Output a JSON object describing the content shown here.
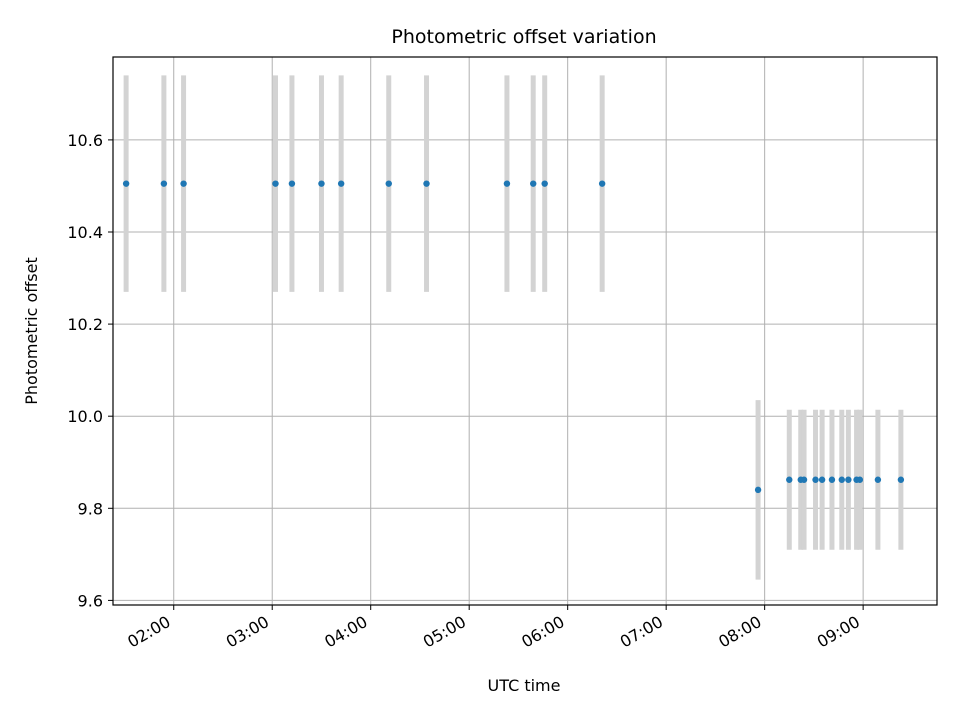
{
  "chart_data": {
    "type": "scatter",
    "title": "Photometric offset variation",
    "xlabel": "UTC time",
    "ylabel": "Photometric offset",
    "xlim": [
      "01:23",
      "09:45"
    ],
    "ylim": [
      9.59,
      10.78
    ],
    "grid": true,
    "x_ticks": [
      "02:00",
      "03:00",
      "04:00",
      "05:00",
      "06:00",
      "07:00",
      "08:00",
      "09:00"
    ],
    "y_ticks": [
      "9.6",
      "9.8",
      "10.0",
      "10.2",
      "10.4",
      "10.6"
    ],
    "errorbar_color": "#d3d3d3",
    "marker_color": "#1f77b4",
    "points": [
      {
        "x": "01:31",
        "y": 10.505,
        "err": 0.235
      },
      {
        "x": "01:54",
        "y": 10.505,
        "err": 0.235
      },
      {
        "x": "02:06",
        "y": 10.505,
        "err": 0.235
      },
      {
        "x": "03:02",
        "y": 10.505,
        "err": 0.235
      },
      {
        "x": "03:12",
        "y": 10.505,
        "err": 0.235
      },
      {
        "x": "03:30",
        "y": 10.505,
        "err": 0.235
      },
      {
        "x": "03:42",
        "y": 10.505,
        "err": 0.235
      },
      {
        "x": "04:11",
        "y": 10.505,
        "err": 0.235
      },
      {
        "x": "04:34",
        "y": 10.505,
        "err": 0.235
      },
      {
        "x": "05:23",
        "y": 10.505,
        "err": 0.235
      },
      {
        "x": "05:39",
        "y": 10.505,
        "err": 0.235
      },
      {
        "x": "05:46",
        "y": 10.505,
        "err": 0.235
      },
      {
        "x": "06:21",
        "y": 10.505,
        "err": 0.235
      },
      {
        "x": "07:56",
        "y": 9.84,
        "err": 0.195
      },
      {
        "x": "08:15",
        "y": 9.862,
        "err": 0.152
      },
      {
        "x": "08:22",
        "y": 9.862,
        "err": 0.152
      },
      {
        "x": "08:24",
        "y": 9.862,
        "err": 0.152
      },
      {
        "x": "08:31",
        "y": 9.862,
        "err": 0.152
      },
      {
        "x": "08:35",
        "y": 9.862,
        "err": 0.152
      },
      {
        "x": "08:41",
        "y": 9.862,
        "err": 0.152
      },
      {
        "x": "08:47",
        "y": 9.862,
        "err": 0.152
      },
      {
        "x": "08:51",
        "y": 9.862,
        "err": 0.152
      },
      {
        "x": "08:56",
        "y": 9.862,
        "err": 0.152
      },
      {
        "x": "08:58",
        "y": 9.862,
        "err": 0.152
      },
      {
        "x": "09:09",
        "y": 9.862,
        "err": 0.152
      },
      {
        "x": "09:23",
        "y": 9.862,
        "err": 0.152
      }
    ]
  }
}
